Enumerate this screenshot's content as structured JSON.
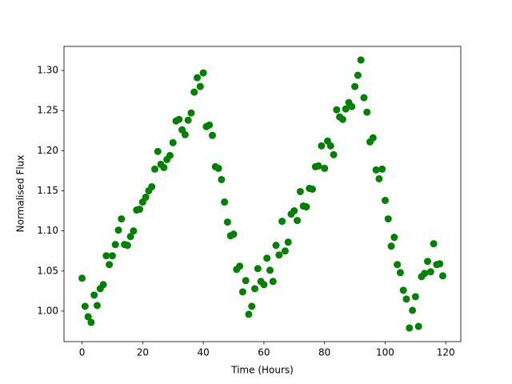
{
  "chart_data": {
    "type": "scatter",
    "xlabel": "Time (Hours)",
    "ylabel": "Normalised Flux",
    "color": "#008000",
    "x": [
      0,
      1,
      2,
      3,
      4,
      5,
      6,
      7,
      8,
      9,
      10,
      11,
      12,
      13,
      14,
      15,
      16,
      17,
      18,
      19,
      20,
      21,
      22,
      23,
      24,
      25,
      26,
      27,
      28,
      29,
      30,
      31,
      32,
      33,
      34,
      35,
      36,
      37,
      38,
      39,
      40,
      41,
      42,
      43,
      44,
      45,
      46,
      47,
      48,
      49,
      50,
      51,
      52,
      53,
      54,
      55,
      56,
      57,
      58,
      59,
      60,
      61,
      62,
      63,
      64,
      65,
      66,
      67,
      68,
      69,
      70,
      71,
      72,
      73,
      74,
      75,
      76,
      77,
      78,
      79,
      80,
      81,
      82,
      83,
      84,
      85,
      86,
      87,
      88,
      89,
      90,
      91,
      92,
      93,
      94,
      95,
      96,
      97,
      98,
      99,
      100,
      101,
      102,
      103,
      104,
      105,
      106,
      107,
      108,
      109,
      110,
      111,
      112,
      113,
      114,
      115,
      116,
      117,
      118,
      119
    ],
    "values": [
      1.041,
      1.006,
      0.993,
      0.986,
      1.02,
      1.007,
      1.028,
      1.033,
      1.069,
      1.058,
      1.069,
      1.083,
      1.101,
      1.115,
      1.083,
      1.082,
      1.093,
      1.1,
      1.126,
      1.127,
      1.136,
      1.142,
      1.15,
      1.155,
      1.177,
      1.199,
      1.183,
      1.179,
      1.189,
      1.194,
      1.21,
      1.237,
      1.239,
      1.226,
      1.22,
      1.238,
      1.247,
      1.273,
      1.291,
      1.28,
      1.297,
      1.23,
      1.232,
      1.219,
      1.18,
      1.178,
      1.164,
      1.136,
      1.111,
      1.094,
      1.096,
      1.052,
      1.056,
      1.024,
      1.038,
      0.996,
      1.006,
      1.028,
      1.053,
      1.037,
      1.033,
      1.066,
      1.051,
      1.037,
      1.082,
      1.07,
      1.112,
      1.075,
      1.086,
      1.121,
      1.125,
      1.113,
      1.149,
      1.131,
      1.13,
      1.153,
      1.152,
      1.18,
      1.181,
      1.206,
      1.178,
      1.212,
      1.206,
      1.195,
      1.251,
      1.242,
      1.239,
      1.252,
      1.26,
      1.255,
      1.28,
      1.294,
      1.313,
      1.266,
      1.248,
      1.211,
      1.216,
      1.176,
      1.165,
      1.177,
      1.138,
      1.115,
      1.081,
      1.092,
      1.058,
      1.048,
      1.026,
      1.015,
      0.979,
      1.001,
      1.018,
      0.981,
      1.043,
      1.047,
      1.062,
      1.049,
      1.084,
      1.058,
      1.059,
      1.044
    ],
    "xlim": [
      -5.95,
      124.95
    ],
    "xticks": [
      0,
      20,
      40,
      60,
      80,
      100,
      120
    ],
    "ylim": [
      0.962,
      1.33
    ],
    "yticks": [
      {
        "value": 1.0,
        "label": "1.00"
      },
      1.05,
      {
        "value": 1.1,
        "label": "1.10"
      },
      1.15,
      {
        "value": 1.2,
        "label": "1.20"
      },
      1.25,
      {
        "value": 1.3,
        "label": "1.30"
      }
    ]
  }
}
